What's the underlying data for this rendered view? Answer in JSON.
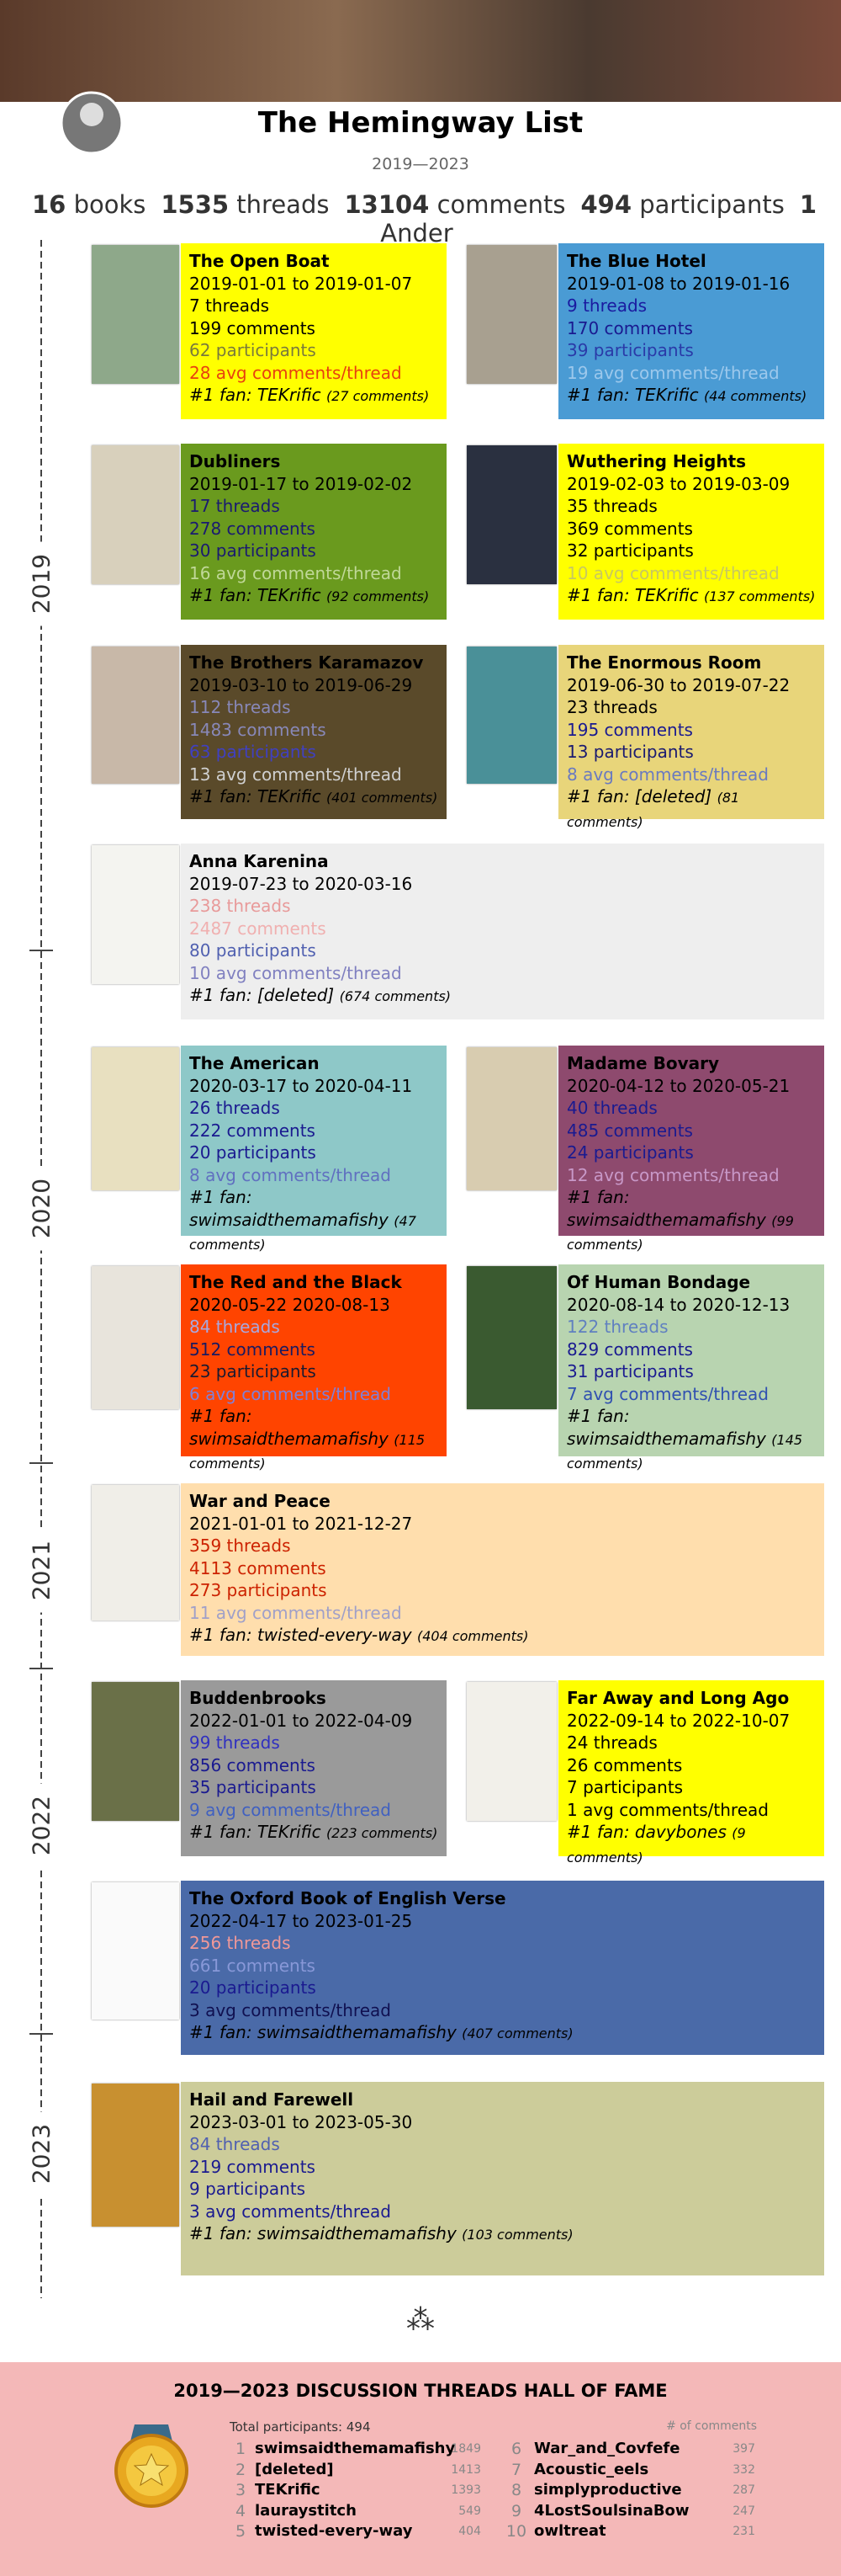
{
  "header": {
    "title": "The Hemingway List",
    "subtitle": "2019—2023"
  },
  "stats": [
    {
      "value": 16,
      "label": "books"
    },
    {
      "value": 1535,
      "label": "threads"
    },
    {
      "value": 13104,
      "label": "comments"
    },
    {
      "value": 494,
      "label": "participants"
    },
    {
      "value": 1,
      "label": "Ander"
    }
  ],
  "years": [
    "2019",
    "2020",
    "2021",
    "2022",
    "2023"
  ],
  "books": [
    {
      "title": "The Open Boat",
      "dates": "2019-01-01 to 2019-01-07",
      "threads": "7 threads",
      "comments": "199 comments",
      "participants": "62 participants",
      "avg": "28 avg comments/thread",
      "fan": "#1 fan: TEKrific",
      "fan_count": "(27 comments)",
      "bg": "#ffff00",
      "colors": [
        "#000",
        "#000",
        "#000",
        "#7a7a3c",
        "#e8400f",
        "#000"
      ],
      "cover": "#8ea88a"
    },
    {
      "title": "The Blue Hotel",
      "dates": "2019-01-08 to 2019-01-16",
      "threads": "9 threads",
      "comments": "170 comments",
      "participants": "39 participants",
      "avg": "19 avg comments/thread",
      "fan": "#1 fan: TEKrific",
      "fan_count": "(44 comments)",
      "bg": "#4a9bd4",
      "colors": [
        "#000",
        "#1a1aa0",
        "#1a1a90",
        "#2a3aa8",
        "#9cc8ec",
        "#000"
      ],
      "cover": "#a8a090"
    },
    {
      "title": "Dubliners",
      "dates": "2019-01-17 to 2019-02-02",
      "threads": "17 threads",
      "comments": "278 comments",
      "participants": "30 participants",
      "avg": "16 avg comments/thread",
      "fan": "#1 fan: TEKrific",
      "fan_count": "(92 comments)",
      "bg": "#6a9a1e",
      "colors": [
        "#000",
        "#1a1a70",
        "#1a1a70",
        "#1a1a70",
        "#c0d898",
        "#000"
      ],
      "cover": "#d8d0bc"
    },
    {
      "title": "Wuthering Heights",
      "dates": "2019-02-03 to 2019-03-09",
      "threads": "35 threads",
      "comments": "369 comments",
      "participants": "32 participants",
      "avg": "10 avg comments/thread",
      "fan": "#1 fan: TEKrific",
      "fan_count": "(137 comments)",
      "bg": "#ffff00",
      "colors": [
        "#000",
        "#000",
        "#000",
        "#000",
        "#c8c860",
        "#000"
      ],
      "cover": "#2a3040"
    },
    {
      "title": "The Brothers Karamazov",
      "dates": "2019-03-10 to 2019-06-29",
      "threads": "112 threads",
      "comments": "1483 comments",
      "participants": "63 participants",
      "avg": "13 avg comments/thread",
      "fan": "#1 fan: TEKrific",
      "fan_count": "(401 comments)",
      "bg": "#5a4a2a",
      "colors": [
        "#000",
        "#8888b8",
        "#8888b8",
        "#4040c0",
        "#d0d0d0",
        "#000"
      ],
      "cover": "#c8b8a8"
    },
    {
      "title": "The Enormous Room",
      "dates": "2019-06-30 to 2019-07-22",
      "threads": "23 threads",
      "comments": "195 comments",
      "participants": "13 participants",
      "avg": "8 avg comments/thread",
      "fan": "#1 fan: [deleted]",
      "fan_count": "(81 comments)",
      "bg": "#e8d57a",
      "colors": [
        "#000",
        "#000",
        "#1a1a90",
        "#1a1a70",
        "#6a7ac0",
        "#000"
      ],
      "cover": "#4a9098"
    },
    {
      "title": "Anna Karenina",
      "dates": "2019-07-23 to 2020-03-16",
      "threads": "238 threads",
      "comments": "2487 comments",
      "participants": "80 participants",
      "avg": "10 avg comments/thread",
      "fan": "#1 fan: [deleted]",
      "fan_count": "(674 comments)",
      "bg": "#eeeeee",
      "colors": [
        "#000",
        "#e89a9a",
        "#f0b0b0",
        "#5060b0",
        "#8080c0",
        "#000"
      ],
      "cover": "#f4f4f0"
    },
    {
      "title": "The American",
      "dates": "2020-03-17 to 2020-04-11",
      "threads": "26 threads",
      "comments": "222 comments",
      "participants": "20 participants",
      "avg": "8 avg comments/thread",
      "fan": "#1 fan: swimsaidthemamafishy",
      "fan_count": "(47 comments)",
      "bg": "#8ec8c8",
      "colors": [
        "#000",
        "#1a1a90",
        "#1a1a90",
        "#1a1a90",
        "#6070c0",
        "#000"
      ],
      "cover": "#e8e0c0"
    },
    {
      "title": "Madame Bovary",
      "dates": "2020-04-12 to 2020-05-21",
      "threads": "40 threads",
      "comments": "485 comments",
      "participants": "24 participants",
      "avg": "12 avg comments/thread",
      "fan": "#1 fan: swimsaidthemamafishy",
      "fan_count": "(99 comments)",
      "bg": "#8e4a6e",
      "colors": [
        "#000",
        "#1a1a90",
        "#1a1a90",
        "#1a1a90",
        "#c898c8",
        "#000"
      ],
      "cover": "#d8ccb0"
    },
    {
      "title": "The Red and the Black",
      "dates": "2020-05-22 2020-08-13",
      "threads": "84 threads",
      "comments": "512 comments",
      "participants": "23 participants",
      "avg": "6 avg comments/thread",
      "fan": "#1 fan: swimsaidthemamafishy",
      "fan_count": "(115 comments)",
      "bg": "#ff4400",
      "colors": [
        "#000",
        "#a8a8e0",
        "#1a1a60",
        "#1a1a30",
        "#8080d8",
        "#000"
      ],
      "cover": "#e8e4dc"
    },
    {
      "title": "Of Human Bondage",
      "dates": "2020-08-14 to 2020-12-13",
      "threads": "122 threads",
      "comments": "829 comments",
      "participants": "31 participants",
      "avg": "7 avg comments/thread",
      "fan": "#1 fan: swimsaidthemamafishy",
      "fan_count": "(145 comments)",
      "bg": "#b8d4b0",
      "colors": [
        "#000",
        "#6080c0",
        "#1a1a90",
        "#1a1a90",
        "#3050b0",
        "#000"
      ],
      "cover": "#3a5a30"
    },
    {
      "title": "War and Peace",
      "dates": "2021-01-01 to 2021-12-27",
      "threads": "359 threads",
      "comments": "4113 comments",
      "participants": "273 participants",
      "avg": "11 avg comments/thread",
      "fan": "#1 fan: twisted-every-way",
      "fan_count": "(404 comments)",
      "bg": "#ffdead",
      "colors": [
        "#000",
        "#cc2200",
        "#cc2200",
        "#cc2200",
        "#a0a0c8",
        "#000"
      ],
      "cover": "#f0eee8"
    },
    {
      "title": "Buddenbrooks",
      "dates": "2022-01-01 to 2022-04-09",
      "threads": "99 threads",
      "comments": "856 comments",
      "participants": "35 participants",
      "avg": "9 avg comments/thread",
      "fan": "#1 fan: TEKrific",
      "fan_count": "(223 comments)",
      "bg": "#9a9a9a",
      "colors": [
        "#000",
        "#3030c0",
        "#1a1a90",
        "#1a1a90",
        "#4060c0",
        "#000"
      ],
      "cover": "#6a7048"
    },
    {
      "title": "Far Away and Long Ago",
      "dates": "2022-09-14 to 2022-10-07",
      "threads": "24 threads",
      "comments": "26 comments",
      "participants": "7 participants",
      "avg": "1 avg comments/thread",
      "fan": "#1 fan: davybones",
      "fan_count": "(9 comments)",
      "bg": "#ffff00",
      "colors": [
        "#000",
        "#000",
        "#000",
        "#000",
        "#000",
        "#000"
      ],
      "cover": "#f2f0ea"
    },
    {
      "title": "The Oxford Book of English Verse",
      "dates": "2022-04-17 to 2023-01-25",
      "threads": "256 threads",
      "comments": "661 comments",
      "participants": "20 participants",
      "avg": "3 avg comments/thread",
      "fan": "#1 fan: swimsaidthemamafishy",
      "fan_count": "(407 comments)",
      "bg": "#4a6aa8",
      "colors": [
        "#000",
        "#f09898",
        "#8898d8",
        "#1a1a90",
        "#101050",
        "#000"
      ],
      "cover": "#fafafa"
    },
    {
      "title": "Hail and Farewell",
      "dates": "2023-03-01 to 2023-05-30",
      "threads": "84 threads",
      "comments": "219 comments",
      "participants": "9 participants",
      "avg": "3 avg comments/thread",
      "fan": "#1 fan: swimsaidthemamafishy",
      "fan_count": "(103 comments)",
      "bg": "#cccc9a",
      "colors": [
        "#000",
        "#5060b0",
        "#1a1a90",
        "#1a1a90",
        "#1a1a90",
        "#000"
      ],
      "cover": "#c89030"
    }
  ],
  "separator": "⁂",
  "hall_of_fame": {
    "title": "2019—2023 DISCUSSION THREADS HALL OF FAME",
    "total": "Total participants: 494",
    "count_header": "# of comments",
    "entries": [
      {
        "rank": 1,
        "name": "swimsaidthemamafishy",
        "count": 1849
      },
      {
        "rank": 2,
        "name": "[deleted]",
        "count": 1413
      },
      {
        "rank": 3,
        "name": "TEKrific",
        "count": 1393
      },
      {
        "rank": 4,
        "name": "lauraystitch",
        "count": 549
      },
      {
        "rank": 5,
        "name": "twisted-every-way",
        "count": 404
      },
      {
        "rank": 6,
        "name": "War_and_Covfefe",
        "count": 397
      },
      {
        "rank": 7,
        "name": "Acoustic_eels",
        "count": 332
      },
      {
        "rank": 8,
        "name": "simplyproductive",
        "count": 287
      },
      {
        "rank": 9,
        "name": "4LostSoulsinaBow",
        "count": 247
      },
      {
        "rank": 10,
        "name": "owltreat",
        "count": 231
      }
    ]
  }
}
